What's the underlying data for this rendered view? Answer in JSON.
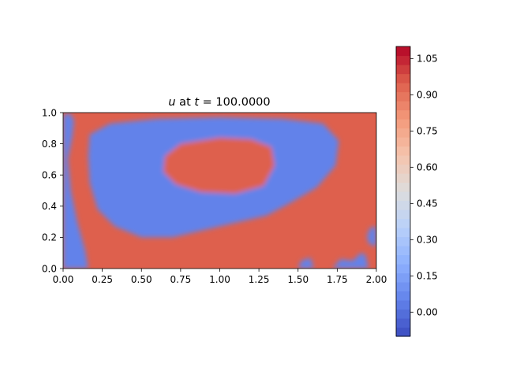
{
  "chart_data": {
    "type": "heatmap",
    "title": "u at t = 100.0000",
    "title_parts": {
      "var": "u",
      "mid": " at ",
      "tvar": "t",
      "eq": " = 100.0000"
    },
    "xlabel": "",
    "ylabel": "",
    "xlim": [
      0.0,
      2.0
    ],
    "ylim": [
      0.0,
      1.0
    ],
    "x_ticks": [
      "0.00",
      "0.25",
      "0.50",
      "0.75",
      "1.00",
      "1.25",
      "1.50",
      "1.75",
      "2.00"
    ],
    "y_ticks": [
      "0.0",
      "0.2",
      "0.4",
      "0.6",
      "0.8",
      "1.0"
    ],
    "colormap": "coolwarm",
    "colorbar": {
      "min": -0.1,
      "max": 1.1,
      "ticks": [
        "0.00",
        "0.15",
        "0.30",
        "0.45",
        "0.60",
        "0.75",
        "0.90",
        "1.05"
      ],
      "levels": 32
    },
    "field": {
      "background_value": 0.95,
      "cold_value": 0.05,
      "hot_value": 0.95,
      "cold_regions": [
        {
          "name": "ring",
          "points": [
            [
              0.17,
              0.86
            ],
            [
              0.3,
              0.93
            ],
            [
              0.6,
              0.96
            ],
            [
              1.0,
              0.97
            ],
            [
              1.4,
              0.96
            ],
            [
              1.66,
              0.93
            ],
            [
              1.76,
              0.82
            ],
            [
              1.74,
              0.66
            ],
            [
              1.62,
              0.52
            ],
            [
              1.45,
              0.42
            ],
            [
              1.3,
              0.34
            ],
            [
              1.0,
              0.27
            ],
            [
              0.7,
              0.2
            ],
            [
              0.5,
              0.2
            ],
            [
              0.33,
              0.27
            ],
            [
              0.22,
              0.38
            ],
            [
              0.17,
              0.55
            ],
            [
              0.16,
              0.72
            ]
          ]
        },
        {
          "name": "left-strip",
          "points": [
            [
              0.0,
              0.98
            ],
            [
              0.04,
              1.0
            ],
            [
              0.07,
              0.95
            ],
            [
              0.06,
              0.85
            ],
            [
              0.03,
              0.7
            ],
            [
              0.05,
              0.5
            ],
            [
              0.09,
              0.3
            ],
            [
              0.14,
              0.12
            ],
            [
              0.16,
              0.0
            ],
            [
              0.0,
              0.0
            ]
          ]
        },
        {
          "name": "bottom-blob-1",
          "points": [
            [
              1.5,
              0.0
            ],
            [
              1.52,
              0.05
            ],
            [
              1.58,
              0.07
            ],
            [
              1.6,
              0.0
            ]
          ]
        },
        {
          "name": "bottom-blob-2",
          "points": [
            [
              1.72,
              0.0
            ],
            [
              1.77,
              0.06
            ],
            [
              1.85,
              0.05
            ],
            [
              1.9,
              0.1
            ],
            [
              1.93,
              0.09
            ],
            [
              1.95,
              0.0
            ]
          ]
        },
        {
          "name": "right-blob",
          "points": [
            [
              1.94,
              0.21
            ],
            [
              1.96,
              0.26
            ],
            [
              2.0,
              0.27
            ],
            [
              2.0,
              0.14
            ],
            [
              1.95,
              0.16
            ]
          ]
        }
      ],
      "hot_regions": [
        {
          "name": "center-island",
          "points": [
            [
              0.65,
              0.72
            ],
            [
              0.75,
              0.8
            ],
            [
              1.0,
              0.84
            ],
            [
              1.2,
              0.83
            ],
            [
              1.33,
              0.78
            ],
            [
              1.35,
              0.66
            ],
            [
              1.28,
              0.53
            ],
            [
              1.1,
              0.48
            ],
            [
              0.88,
              0.49
            ],
            [
              0.72,
              0.54
            ],
            [
              0.64,
              0.62
            ]
          ]
        }
      ]
    }
  }
}
